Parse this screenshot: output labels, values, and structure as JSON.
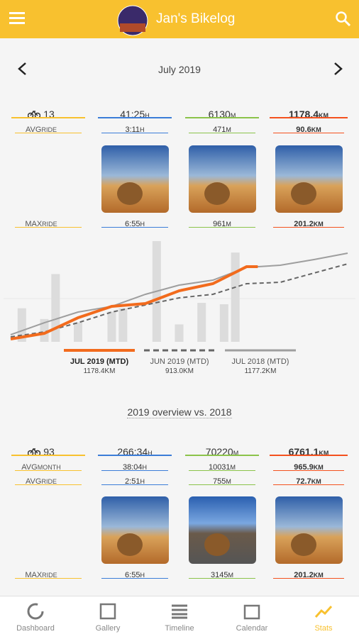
{
  "header": {
    "title": "Jan's Bikelog"
  },
  "month_nav": {
    "label": "July 2019"
  },
  "month_stats": {
    "summary": {
      "rides": "13",
      "time": {
        "value": "41:25",
        "unit": "H"
      },
      "climb": {
        "value": "6130",
        "unit": "M"
      },
      "distance": {
        "value": "1178.4",
        "unit": "KM"
      }
    },
    "rows": [
      {
        "label": "AVG",
        "sub": "RIDE",
        "time": {
          "value": "3:11",
          "unit": "H"
        },
        "climb": {
          "value": "471",
          "unit": "M"
        },
        "distance": {
          "value": "90.6",
          "unit": "KM"
        }
      }
    ],
    "max": {
      "label": "MAX",
      "sub": "RIDE",
      "time": {
        "value": "6:55",
        "unit": "H"
      },
      "climb": {
        "value": "961",
        "unit": "M"
      },
      "distance": {
        "value": "201.2",
        "unit": "KM"
      }
    }
  },
  "chart_data": {
    "type": "line",
    "xlim": [
      1,
      31
    ],
    "ylim": [
      0,
      1600
    ],
    "bar_ylim": [
      0,
      150
    ],
    "bar_color": "#dcdcdc",
    "bar_days": [
      2,
      4,
      5,
      7,
      10,
      11,
      14,
      16,
      18,
      20,
      21
    ],
    "bar_values": [
      50,
      34,
      101,
      29,
      45,
      50,
      150,
      26,
      58,
      56,
      133
    ],
    "series": [
      {
        "name": "JUL 2019 (MTD)",
        "total_label": "1178.4KM",
        "color": "#f26b1d",
        "style": "solid",
        "x": [
          1,
          4,
          7,
          10,
          13,
          16,
          19,
          22,
          23
        ],
        "values": [
          45,
          135,
          383,
          563,
          608,
          811,
          924,
          1194,
          1194
        ]
      },
      {
        "name": "JUN 2019 (MTD)",
        "total_label": "913.0KM",
        "color": "#666666",
        "style": "dashed",
        "x": [
          1,
          4,
          7,
          10,
          13,
          16,
          19,
          22,
          25,
          28,
          31
        ],
        "values": [
          79,
          158,
          304,
          473,
          586,
          699,
          755,
          924,
          946,
          1093,
          1239
        ]
      },
      {
        "name": "JUL 2018 (MTD)",
        "total_label": "1177.2KM",
        "color": "#9e9e9e",
        "style": "solid",
        "x": [
          1,
          4,
          7,
          10,
          13,
          16,
          19,
          22,
          25,
          28,
          31
        ],
        "values": [
          113,
          304,
          473,
          563,
          755,
          901,
          980,
          1183,
          1217,
          1307,
          1408
        ]
      }
    ]
  },
  "overview": {
    "title": "2019 overview vs. 2018"
  },
  "year_stats": {
    "summary": {
      "rides": "93",
      "time": {
        "value": "266:34",
        "unit": "H"
      },
      "climb": {
        "value": "70220",
        "unit": "M"
      },
      "distance": {
        "value": "6761.1",
        "unit": "KM"
      }
    },
    "rows": [
      {
        "label": "AVG",
        "sub": "MONTH",
        "time": {
          "value": "38:04",
          "unit": "H"
        },
        "climb": {
          "value": "10031",
          "unit": "M"
        },
        "distance": {
          "value": "965.9",
          "unit": "KM"
        }
      },
      {
        "label": "AVG",
        "sub": "RIDE",
        "time": {
          "value": "2:51",
          "unit": "H"
        },
        "climb": {
          "value": "755",
          "unit": "M"
        },
        "distance": {
          "value": "72.7",
          "unit": "KM"
        }
      }
    ],
    "max": {
      "label": "MAX",
      "sub": "RIDE",
      "time": {
        "value": "6:55",
        "unit": "H"
      },
      "climb": {
        "value": "3145",
        "unit": "M"
      },
      "distance": {
        "value": "201.2",
        "unit": "KM"
      }
    }
  },
  "tabs": [
    "Dashboard",
    "Gallery",
    "Timeline",
    "Calendar",
    "Stats"
  ]
}
